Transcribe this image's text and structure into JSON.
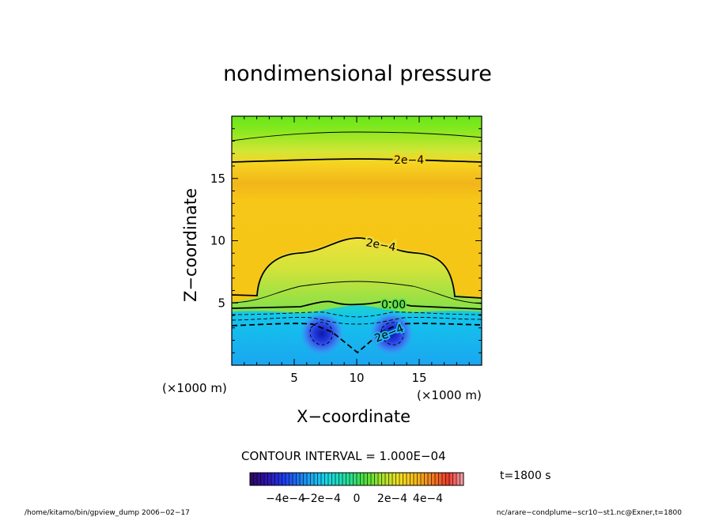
{
  "chart_data": {
    "type": "heatmap",
    "title": "nondimensional pressure",
    "xlabel": "X−coordinate",
    "ylabel": "Z−coordinate",
    "x_unit": "(×1000 m)",
    "y_unit": "(×1000 m)",
    "xlim": [
      0,
      20
    ],
    "ylim": [
      0,
      20
    ],
    "x_ticks": [
      5,
      10,
      15
    ],
    "y_ticks": [
      5,
      10,
      15
    ],
    "x_tick_labels": [
      "5",
      "10",
      "15"
    ],
    "y_tick_labels": [
      "5",
      "10",
      "15"
    ],
    "contour_interval_text": "CONTOUR INTERVAL = 1.000E−04",
    "contour_interval": 0.0001,
    "contour_labels": [
      "2e−4",
      "2e−4",
      "0.00",
      "2e−4"
    ],
    "colorbar": {
      "min": -0.0006,
      "max": 0.0006,
      "tick_labels": [
        "−4e−4",
        "−2e−4",
        "0",
        "2e−4",
        "4e−4"
      ],
      "tick_values": [
        -0.0004,
        -0.0002,
        0,
        0.0002,
        0.0004
      ]
    },
    "time_text": "t=1800 s",
    "footer_left": "/home/kitamo/bin/gpview_dump  2006−02−17",
    "footer_right": "nc/arare−condplume−scr10−st1.nc@Exner,t=1800"
  }
}
